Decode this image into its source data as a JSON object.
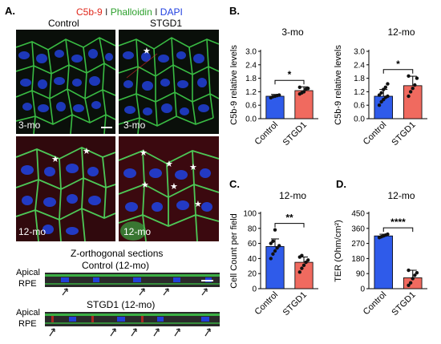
{
  "panelA": {
    "label": "A.",
    "legend": {
      "c5b9": "C5b-9",
      "sep1": "I",
      "phalloidin": "Phalloidin",
      "sep2": "I",
      "dapi": "DAPI"
    },
    "col_control": "Control",
    "col_stgd1": "STGD1",
    "row_3mo_left": "3-mo",
    "row_3mo_right": "3-mo",
    "row_12mo_left": "12-mo",
    "row_12mo_right": "12-mo",
    "zortho_title": "Z-orthogonal sections",
    "control_title": "Control (12-mo)",
    "stgd1_title": "STGD1 (12-mo)",
    "apical": "Apical",
    "rpe": "RPE",
    "apical2": "Apical",
    "rpe2": "RPE",
    "star": "★"
  },
  "colors": {
    "control": "#2f5bea",
    "stgd1": "#f06a5f",
    "red_text": "#e0281c",
    "green_text": "#2ca02c",
    "blue_text": "#1f3fe0"
  },
  "chart_data": [
    {
      "id": "B-3mo",
      "panel": "B.",
      "type": "bar",
      "title": "3-mo",
      "ylabel": "C5b-9 relative levels",
      "ylim": [
        0,
        3.0
      ],
      "yticks": [
        "0.0",
        "0.6",
        "1.2",
        "1.8",
        "2.4",
        "3.0"
      ],
      "categories": [
        "Control",
        "STGD1"
      ],
      "values": [
        1.0,
        1.25
      ],
      "errors": [
        0.08,
        0.17
      ],
      "significance": "*",
      "points": [
        [
          0.93,
          0.98,
          1.0,
          1.03,
          1.05
        ],
        [
          1.1,
          1.15,
          1.2,
          1.32,
          1.35,
          1.4
        ]
      ]
    },
    {
      "id": "B-12mo",
      "type": "bar",
      "title": "12-mo",
      "ylabel": "C5b-9 relative levels",
      "ylim": [
        0,
        3.0
      ],
      "yticks": [
        "0.0",
        "0.6",
        "1.2",
        "1.8",
        "2.4",
        "3.0"
      ],
      "categories": [
        "Control",
        "STGD1"
      ],
      "values": [
        1.0,
        1.47
      ],
      "errors": [
        0.3,
        0.42
      ],
      "significance": "*",
      "points": [
        [
          0.6,
          0.75,
          0.85,
          0.95,
          1.0,
          1.05,
          1.15,
          1.3,
          1.4,
          1.55
        ],
        [
          1.0,
          1.2,
          1.35,
          1.5,
          1.8,
          1.9
        ]
      ]
    },
    {
      "id": "C",
      "panel": "C.",
      "type": "bar",
      "title": "12-mo",
      "ylabel": "Cell Count per field",
      "ylim": [
        0,
        100
      ],
      "yticks": [
        "0",
        "20",
        "40",
        "60",
        "80",
        "100"
      ],
      "categories": [
        "Control",
        "STGD1"
      ],
      "values": [
        56,
        35
      ],
      "errors": [
        10,
        7
      ],
      "significance": "**",
      "points": [
        [
          40,
          46,
          50,
          54,
          57,
          60,
          63,
          78
        ],
        [
          22,
          27,
          31,
          35,
          38,
          42,
          44
        ]
      ]
    },
    {
      "id": "D",
      "panel": "D.",
      "type": "bar",
      "title": "12-mo",
      "ylabel": "TER (Ohm/cm²)",
      "ylim": [
        0,
        450
      ],
      "yticks": [
        "0",
        "90",
        "180",
        "270",
        "360",
        "450"
      ],
      "categories": [
        "Control",
        "STGD1"
      ],
      "values": [
        315,
        65
      ],
      "errors": [
        10,
        45
      ],
      "significance": "****",
      "points": [
        [
          305,
          310,
          315,
          320,
          325
        ],
        [
          20,
          35,
          60,
          80,
          95,
          110
        ]
      ]
    }
  ]
}
